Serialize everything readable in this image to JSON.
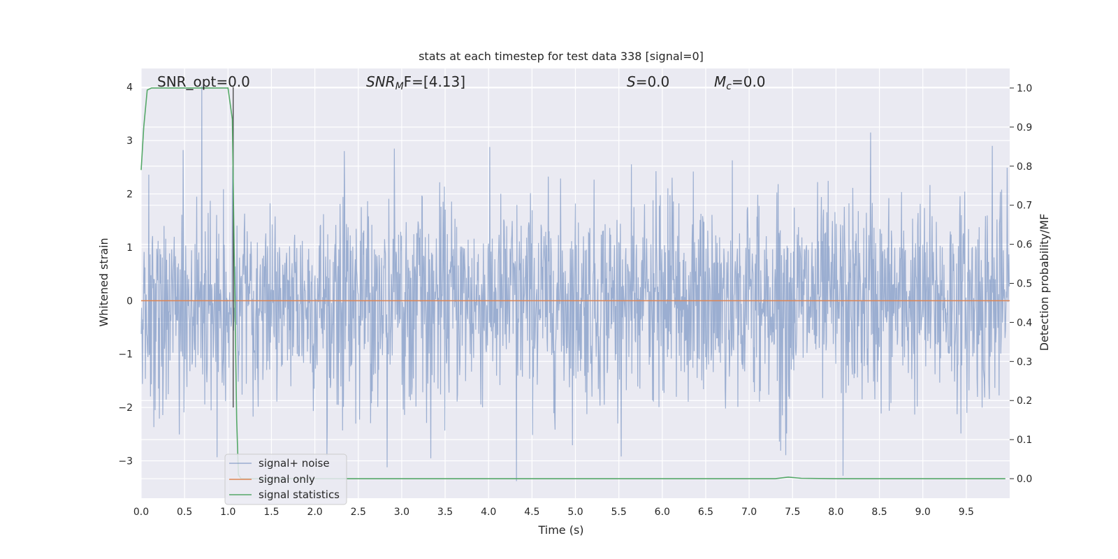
{
  "chart_data": {
    "type": "line",
    "title": "stats at each timestep for test data 338 [signal=0]",
    "xlabel": "Time (s)",
    "ylabel": "Whitened strain",
    "y2label": "Detection probability/MF",
    "xlim": [
      0,
      10
    ],
    "ylim": [
      -3.7,
      4.35
    ],
    "y2lim": [
      -0.05,
      1.05
    ],
    "xticks": [
      "0.0",
      "0.5",
      "1.0",
      "1.5",
      "2.0",
      "2.5",
      "3.0",
      "3.5",
      "4.0",
      "4.5",
      "5.0",
      "5.5",
      "6.0",
      "6.5",
      "7.0",
      "7.5",
      "8.0",
      "8.5",
      "9.0",
      "9.5"
    ],
    "yticks": [
      "4",
      "3",
      "2",
      "1",
      "0",
      "−1",
      "−2",
      "−3"
    ],
    "y2ticks": [
      "1.0",
      "0.9",
      "0.8",
      "0.7",
      "0.6",
      "0.5",
      "0.4",
      "0.3",
      "0.2",
      "0.1",
      "0.0"
    ],
    "grid": true,
    "legend_position": "lower-left",
    "annotations": [
      {
        "text": "SNR_opt=0.0"
      },
      {
        "text": "SNRMF=[4.13]",
        "main": "SNR",
        "sub": "M",
        "rest": "F=[4.13]"
      },
      {
        "text": "S=0.0",
        "main": "S",
        "rest": "=0.0"
      },
      {
        "text": "Mc=0.0",
        "main": "M",
        "sub": "c",
        "rest": "=0.0"
      }
    ],
    "series": [
      {
        "name": "signal+ noise",
        "color": "#4c72b0",
        "axis": "left",
        "description_values": "whitened strain noise, approx. Gaussian, mean 0, std ~0.95, range about -3.4 to 4.0",
        "std": 0.95,
        "peaks": [
          [
            0.7,
            4.02
          ],
          [
            1.05,
            2.05
          ],
          [
            8.4,
            3.15
          ],
          [
            9.8,
            2.9
          ],
          [
            4.32,
            -3.38
          ],
          [
            8.08,
            -3.28
          ],
          [
            2.83,
            -3.12
          ]
        ]
      },
      {
        "name": "signal only",
        "color": "#dd8452",
        "axis": "left",
        "x": [
          0,
          10
        ],
        "y": [
          0,
          0
        ]
      },
      {
        "name": "signal statistics",
        "color": "#55a868",
        "axis": "right",
        "x": [
          0.0,
          0.03,
          0.07,
          0.12,
          0.3,
          0.6,
          0.9,
          1.0,
          1.05,
          1.07,
          1.1,
          1.12,
          1.15,
          1.3,
          2.0,
          4.0,
          6.0,
          7.0,
          7.3,
          7.45,
          7.6,
          8.0,
          9.0,
          9.95
        ],
        "y": [
          0.79,
          0.9,
          0.995,
          1.0,
          1.0,
          1.0,
          1.0,
          1.0,
          0.92,
          0.6,
          0.15,
          0.01,
          0.0,
          0.0,
          0.0,
          0.0,
          0.0,
          0.0,
          0.0,
          0.004,
          0.001,
          0.0,
          0.0,
          0.0
        ]
      }
    ],
    "vertical_line": {
      "x": 1.06,
      "color": "#333333"
    }
  }
}
